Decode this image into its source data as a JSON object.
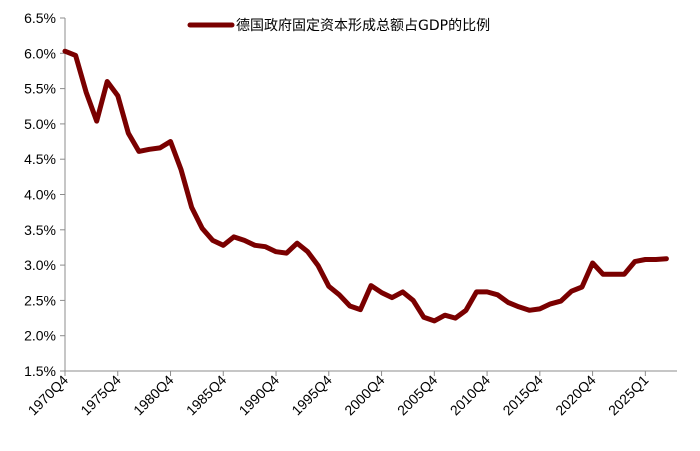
{
  "chart_data": {
    "type": "line",
    "title": "",
    "xlabel": "",
    "ylabel": "",
    "ylim": [
      1.5,
      6.5
    ],
    "y_ticks": [
      "1.5%",
      "2.0%",
      "2.5%",
      "3.0%",
      "3.5%",
      "4.0%",
      "4.5%",
      "5.0%",
      "5.5%",
      "6.0%",
      "6.5%"
    ],
    "y_tick_values": [
      1.5,
      2.0,
      2.5,
      3.0,
      3.5,
      4.0,
      4.5,
      5.0,
      5.5,
      6.0,
      6.5
    ],
    "x_tick_labels": [
      "1970Q4",
      "1975Q4",
      "1980Q4",
      "1985Q4",
      "1990Q4",
      "1995Q4",
      "2000Q4",
      "2005Q4",
      "2010Q4",
      "2015Q4",
      "2020Q4",
      "2025Q1"
    ],
    "x_tick_values": [
      1970,
      1975,
      1980,
      1985,
      1990,
      1995,
      2000,
      2005,
      2010,
      2015,
      2020,
      2025
    ],
    "xlim": [
      1970,
      2028
    ],
    "grid": false,
    "legend_position": "top-center",
    "series": [
      {
        "name": "德国政府固定资本形成总额占GDP的比例",
        "color": "#7a0000",
        "x": [
          1970,
          1971,
          1972,
          1973,
          1974,
          1975,
          1976,
          1977,
          1978,
          1979,
          1980,
          1981,
          1982,
          1983,
          1984,
          1985,
          1986,
          1987,
          1988,
          1989,
          1990,
          1991,
          1992,
          1993,
          1994,
          1995,
          1996,
          1997,
          1998,
          1999,
          2000,
          2001,
          2002,
          2003,
          2004,
          2005,
          2006,
          2007,
          2008,
          2009,
          2010,
          2011,
          2012,
          2013,
          2014,
          2015,
          2016,
          2017,
          2018,
          2019,
          2020,
          2021,
          2022,
          2023,
          2024,
          2025,
          2026,
          2027
        ],
        "values": [
          6.03,
          5.97,
          5.45,
          5.04,
          5.6,
          5.4,
          4.87,
          4.61,
          4.64,
          4.66,
          4.75,
          4.35,
          3.82,
          3.52,
          3.35,
          3.28,
          3.4,
          3.35,
          3.28,
          3.26,
          3.19,
          3.17,
          3.31,
          3.19,
          2.99,
          2.7,
          2.58,
          2.42,
          2.37,
          2.71,
          2.61,
          2.54,
          2.62,
          2.5,
          2.26,
          2.21,
          2.29,
          2.25,
          2.36,
          2.62,
          2.62,
          2.58,
          2.47,
          2.41,
          2.36,
          2.38,
          2.45,
          2.49,
          2.63,
          2.69,
          3.03,
          2.87,
          2.87,
          2.87,
          3.05,
          3.08,
          3.08,
          3.09
        ]
      }
    ]
  }
}
